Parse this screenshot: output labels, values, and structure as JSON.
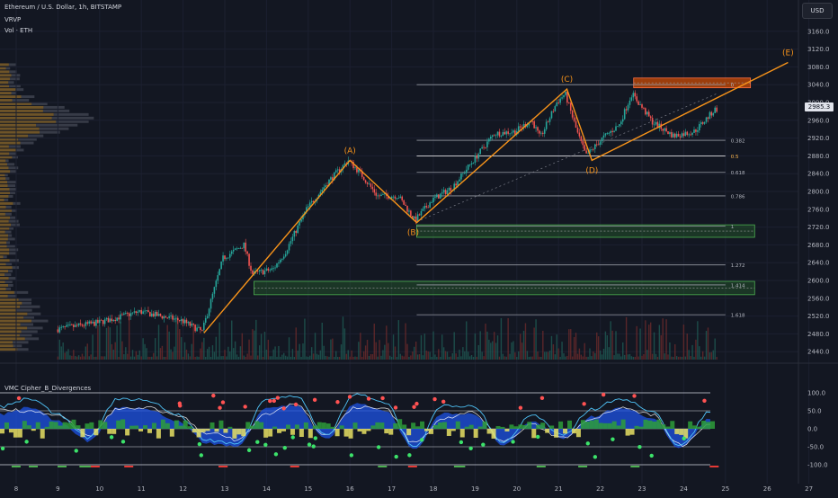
{
  "header": {
    "symbol_line": "Ethereum / U.S. Dollar, 1h, BITSTAMP",
    "indicator_1": "VRVP",
    "indicator_2": "Vol · ETH",
    "oscillator_title": "VMC Cipher_B_Divergences"
  },
  "currency_button": "USD",
  "last_price": "2985.3",
  "colors": {
    "background": "#131722",
    "up": "#26a69a",
    "down": "#ef5350",
    "wave": "#f7931a",
    "zone_green": "#2e7d32",
    "zone_orange": "#e65100",
    "vp_up": "#8d6a2b",
    "vp_down": "#555a66",
    "wt_fill": "#1e53e5",
    "osc_green": "#2e9e3a",
    "osc_yellow": "#e8e063"
  },
  "chart_data": [
    {
      "type": "candlestick",
      "title": "Ethereum / U.S. Dollar, 1h, BITSTAMP",
      "y_axis": {
        "ylim": [
          2420,
          3180
        ],
        "ticks": [
          "3160.0",
          "3120.0",
          "3080.0",
          "3040.0",
          "3000.0",
          "2960.0",
          "2920.0",
          "2880.0",
          "2840.0",
          "2800.0",
          "2760.0",
          "2720.0",
          "2680.0",
          "2640.0",
          "2600.0",
          "2560.0",
          "2520.0",
          "2480.0",
          "2440.0"
        ]
      },
      "x_axis": {
        "ticks": [
          "8",
          "9",
          "10",
          "11",
          "12",
          "13",
          "14",
          "15",
          "16",
          "17",
          "18",
          "19",
          "20",
          "21",
          "22",
          "23",
          "24",
          "25",
          "26",
          "27"
        ]
      },
      "price_anchors": [
        {
          "day": 9.0,
          "price": 2490
        },
        {
          "day": 10.0,
          "price": 2505
        },
        {
          "day": 11.0,
          "price": 2530
        },
        {
          "day": 12.0,
          "price": 2510
        },
        {
          "day": 12.5,
          "price": 2485
        },
        {
          "day": 13.0,
          "price": 2650
        },
        {
          "day": 13.5,
          "price": 2680
        },
        {
          "day": 13.7,
          "price": 2615
        },
        {
          "day": 14.2,
          "price": 2625
        },
        {
          "day": 14.5,
          "price": 2665
        },
        {
          "day": 15.0,
          "price": 2760
        },
        {
          "day": 15.5,
          "price": 2820
        },
        {
          "day": 16.0,
          "price": 2870
        },
        {
          "day": 16.3,
          "price": 2840
        },
        {
          "day": 16.7,
          "price": 2790
        },
        {
          "day": 17.2,
          "price": 2790
        },
        {
          "day": 17.6,
          "price": 2735
        },
        {
          "day": 18.0,
          "price": 2780
        },
        {
          "day": 18.5,
          "price": 2810
        },
        {
          "day": 19.0,
          "price": 2870
        },
        {
          "day": 19.5,
          "price": 2930
        },
        {
          "day": 20.0,
          "price": 2935
        },
        {
          "day": 20.4,
          "price": 2960
        },
        {
          "day": 20.6,
          "price": 2920
        },
        {
          "day": 21.0,
          "price": 3000
        },
        {
          "day": 21.2,
          "price": 3020
        },
        {
          "day": 21.5,
          "price": 2930
        },
        {
          "day": 21.7,
          "price": 2880
        },
        {
          "day": 22.1,
          "price": 2920
        },
        {
          "day": 22.5,
          "price": 2950
        },
        {
          "day": 22.8,
          "price": 3020
        },
        {
          "day": 23.3,
          "price": 2955
        },
        {
          "day": 23.8,
          "price": 2925
        },
        {
          "day": 24.3,
          "price": 2935
        },
        {
          "day": 24.8,
          "price": 2985
        }
      ],
      "wave_points": [
        {
          "label": "",
          "day": 12.5,
          "price": 2482
        },
        {
          "label": "(A)",
          "day": 16.0,
          "price": 2870
        },
        {
          "label": "(B)",
          "day": 17.6,
          "price": 2730
        },
        {
          "label": "(C)",
          "day": 21.2,
          "price": 3030
        },
        {
          "label": "(D)",
          "day": 21.8,
          "price": 2870
        },
        {
          "label": "(E)",
          "day": 26.5,
          "price": 3090
        }
      ],
      "fib_levels": [
        {
          "label": "0",
          "price": 3040
        },
        {
          "label": "0.382",
          "price": 2915
        },
        {
          "label": "0.5",
          "price": 2880
        },
        {
          "label": "0.618",
          "price": 2843
        },
        {
          "label": "0.786",
          "price": 2790
        },
        {
          "label": "1",
          "price": 2722
        },
        {
          "label": "1.272",
          "price": 2635
        },
        {
          "label": "1.414",
          "price": 2590
        },
        {
          "label": "1.618",
          "price": 2523
        }
      ],
      "zones": [
        {
          "color": "green",
          "from_day": 17.6,
          "to_day": 25.7,
          "top": 2725,
          "bottom": 2697
        },
        {
          "color": "green",
          "from_day": 13.7,
          "to_day": 25.7,
          "top": 2598,
          "bottom": 2568
        },
        {
          "color": "orange",
          "from_day": 22.8,
          "to_day": 25.6,
          "top": 3055,
          "bottom": 3033
        }
      ]
    },
    {
      "type": "line",
      "title": "VMC Cipher_B_Divergences",
      "ylim": [
        -110,
        110
      ],
      "y_ticks": [
        "100.0",
        "50.0",
        "0.0",
        "-50.0",
        "-100.0"
      ],
      "series": [
        {
          "name": "wave",
          "values": [
            40,
            60,
            20,
            -35,
            60,
            55,
            20,
            -40,
            -50,
            60,
            65,
            -30,
            70,
            50,
            -55,
            45,
            40,
            -45,
            20,
            -30,
            35,
            60,
            30,
            -55,
            30
          ]
        },
        {
          "name": "signal",
          "values": [
            55,
            50,
            35,
            -20,
            55,
            60,
            35,
            -10,
            -30,
            40,
            70,
            -20,
            60,
            55,
            -40,
            30,
            45,
            -35,
            10,
            -25,
            30,
            60,
            40,
            -45,
            15
          ]
        }
      ]
    }
  ]
}
